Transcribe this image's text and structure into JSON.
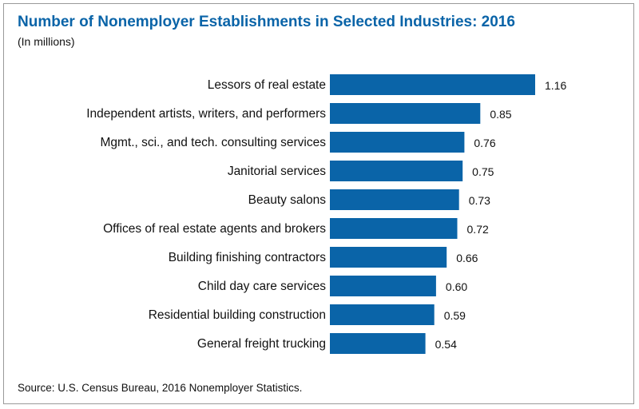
{
  "title": "Number of Nonemployer Establishments in Selected Industries: 2016",
  "subtitle": "(In millions)",
  "source": "Source: U.S. Census Bureau, 2016 Nonemployer Statistics.",
  "colors": {
    "bar": "#0a64a8",
    "title": "#0a64a8"
  },
  "chart_data": {
    "type": "bar",
    "orientation": "horizontal",
    "title": "Number of Nonemployer Establishments in Selected Industries: 2016",
    "subtitle": "(In millions)",
    "categories": [
      "Lessors of real estate",
      "Independent artists, writers, and performers",
      "Mgmt., sci., and tech. consulting services",
      "Janitorial services",
      "Beauty salons",
      "Offices of real estate agents and brokers",
      "Building finishing contractors",
      "Child day care services",
      "Residential building construction",
      "General freight trucking"
    ],
    "values": [
      1.16,
      0.85,
      0.76,
      0.75,
      0.73,
      0.72,
      0.66,
      0.6,
      0.59,
      0.54
    ],
    "value_labels": [
      "1.16",
      "0.85",
      "0.76",
      "0.75",
      "0.73",
      "0.72",
      "0.66",
      "0.60",
      "0.59",
      "0.54"
    ],
    "xlim": [
      0,
      1.16
    ],
    "grid": false,
    "legend": "none"
  }
}
